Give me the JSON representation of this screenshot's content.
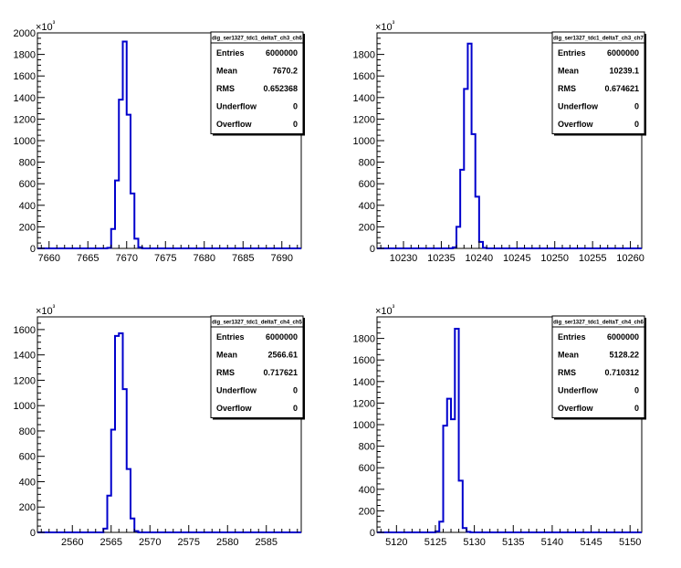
{
  "chart_data": [
    {
      "type": "bar",
      "title": "",
      "stats_box_title": "dig_ser1327_tdc1_deltaT_ch3_ch6",
      "stats": [
        {
          "label": "Entries",
          "value": "6000000"
        },
        {
          "label": "Mean",
          "value": "7670.2"
        },
        {
          "label": "RMS",
          "value": "0.652368"
        },
        {
          "label": "Underflow",
          "value": "0"
        },
        {
          "label": "Overflow",
          "value": "0"
        }
      ],
      "y_exponent_label": "×10³",
      "xlim": [
        7658.5,
        7692.5
      ],
      "ylim": [
        0,
        2000
      ],
      "x_ticks": [
        7660,
        7665,
        7670,
        7675,
        7680,
        7685,
        7690
      ],
      "y_ticks": [
        0,
        200,
        400,
        600,
        800,
        1000,
        1200,
        1400,
        1600,
        1800,
        2000
      ],
      "bin_edges": [
        7667.0,
        7667.5,
        7668.0,
        7668.5,
        7669.0,
        7669.5,
        7670.0,
        7670.5,
        7671.0,
        7671.5,
        7672.0
      ],
      "values": [
        0,
        5,
        180,
        630,
        1380,
        1920,
        1240,
        510,
        90,
        10
      ]
    },
    {
      "type": "bar",
      "title": "",
      "stats_box_title": "dig_ser1327_tdc1_deltaT_ch3_ch7",
      "stats": [
        {
          "label": "Entries",
          "value": "6000000"
        },
        {
          "label": "Mean",
          "value": "10239.1"
        },
        {
          "label": "RMS",
          "value": "0.674621"
        },
        {
          "label": "Underflow",
          "value": "0"
        },
        {
          "label": "Overflow",
          "value": "0"
        }
      ],
      "y_exponent_label": "×10³",
      "xlim": [
        10226.5,
        10261.5
      ],
      "ylim": [
        0,
        2000
      ],
      "x_ticks": [
        10230,
        10235,
        10240,
        10245,
        10250,
        10255,
        10260
      ],
      "y_ticks": [
        0,
        200,
        400,
        600,
        800,
        1000,
        1200,
        1400,
        1600,
        1800
      ],
      "bin_edges": [
        10236.0,
        10236.5,
        10237.0,
        10237.5,
        10238.0,
        10238.5,
        10239.0,
        10239.5,
        10240.0,
        10240.5,
        10241.0
      ],
      "values": [
        0,
        10,
        200,
        730,
        1480,
        1900,
        1060,
        480,
        60,
        5
      ]
    },
    {
      "type": "bar",
      "title": "",
      "stats_box_title": "dig_ser1327_tdc1_deltaT_ch4_ch5",
      "stats": [
        {
          "label": "Entries",
          "value": "6000000"
        },
        {
          "label": "Mean",
          "value": "2566.61"
        },
        {
          "label": "RMS",
          "value": "0.717621"
        },
        {
          "label": "Underflow",
          "value": "0"
        },
        {
          "label": "Overflow",
          "value": "0"
        }
      ],
      "y_exponent_label": "×10³",
      "xlim": [
        2555.5,
        2589.5
      ],
      "ylim": [
        0,
        1700
      ],
      "x_ticks": [
        2560,
        2565,
        2570,
        2575,
        2580,
        2585
      ],
      "y_ticks": [
        0,
        200,
        400,
        600,
        800,
        1000,
        1200,
        1400,
        1600
      ],
      "bin_edges": [
        2563.5,
        2564.0,
        2564.5,
        2565.0,
        2565.5,
        2566.0,
        2566.5,
        2567.0,
        2567.5,
        2568.0,
        2568.5
      ],
      "values": [
        0,
        30,
        290,
        810,
        1550,
        1570,
        1130,
        500,
        110,
        10
      ]
    },
    {
      "type": "bar",
      "title": "",
      "stats_box_title": "dig_ser1327_tdc1_deltaT_ch4_ch6",
      "stats": [
        {
          "label": "Entries",
          "value": "6000000"
        },
        {
          "label": "Mean",
          "value": "5128.22"
        },
        {
          "label": "RMS",
          "value": "0.710312"
        },
        {
          "label": "Underflow",
          "value": "0"
        },
        {
          "label": "Overflow",
          "value": "0"
        }
      ],
      "y_exponent_label": "×10³",
      "xlim": [
        5117.5,
        5151.5
      ],
      "ylim": [
        0,
        2000
      ],
      "x_ticks": [
        5120,
        5125,
        5130,
        5135,
        5140,
        5145,
        5150
      ],
      "y_ticks": [
        0,
        200,
        400,
        600,
        800,
        1000,
        1200,
        1400,
        1600,
        1800
      ],
      "bin_edges": [
        5124.5,
        5125.0,
        5125.5,
        5126.0,
        5126.5,
        5127.0,
        5127.5,
        5128.0,
        5128.5,
        5129.0,
        5129.5,
        5130.0
      ],
      "values": [
        0,
        10,
        100,
        990,
        1240,
        1050,
        1890,
        480,
        40,
        5,
        0
      ]
    }
  ]
}
